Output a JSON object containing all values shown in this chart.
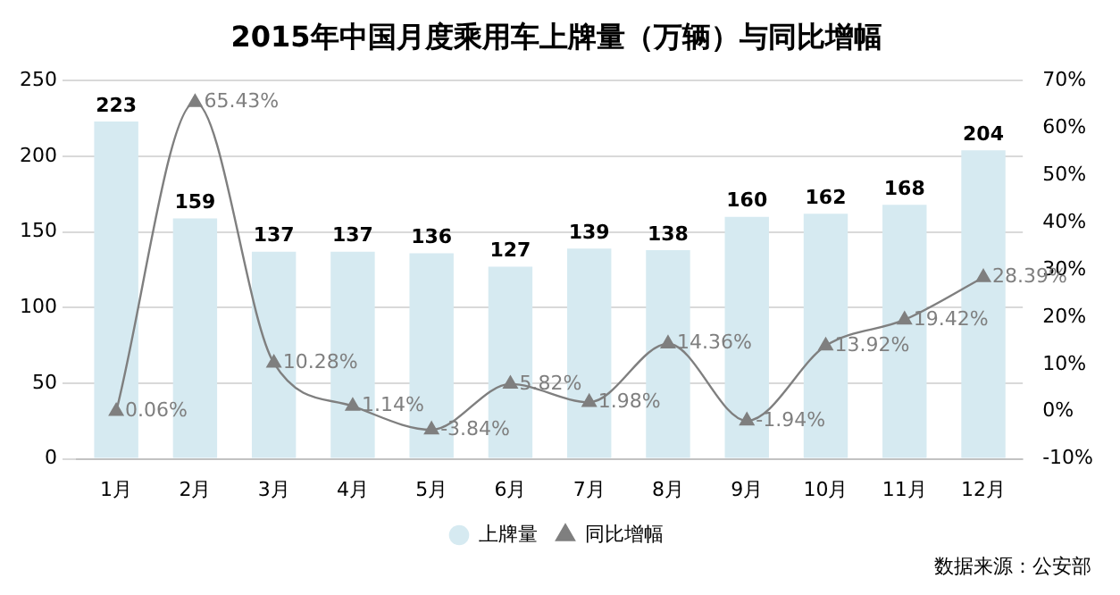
{
  "chart_data": {
    "type": "bar",
    "title": "2015年中国月度乘用车上牌量（万辆）与同比增幅",
    "categories": [
      "1月",
      "2月",
      "3月",
      "4月",
      "5月",
      "6月",
      "7月",
      "8月",
      "9月",
      "10月",
      "11月",
      "12月"
    ],
    "series": [
      {
        "name": "上牌量",
        "color": "#d6eaf1",
        "values": [
          223,
          159,
          137,
          137,
          136,
          127,
          139,
          138,
          160,
          162,
          168,
          204
        ]
      },
      {
        "name": "同比增幅",
        "type": "line",
        "axis": "y2",
        "color": "#7f7f7f",
        "marker": "triangle",
        "values": [
          0.06,
          65.43,
          10.28,
          1.14,
          -3.84,
          5.82,
          1.98,
          14.36,
          -1.94,
          13.92,
          19.42,
          28.39
        ],
        "value_labels": [
          "0.06%",
          "65.43%",
          "10.28%",
          "1.14%",
          "-3.84%",
          "5.82%",
          "1.98%",
          "14.36%",
          "-1.94%",
          "13.92%",
          "19.42%",
          "28.39%"
        ]
      }
    ],
    "data_labels": true,
    "ylim": [
      0,
      250
    ],
    "yticks": [
      0,
      50,
      100,
      150,
      200,
      250
    ],
    "y2lim": [
      -10,
      70
    ],
    "y2ticks": [
      {
        "value": -10,
        "label": "-10%"
      },
      {
        "value": 0,
        "label": "0%"
      },
      {
        "value": 10,
        "label": "10%"
      },
      {
        "value": 20,
        "label": "20%"
      },
      {
        "value": 30,
        "label": "30%"
      },
      {
        "value": 40,
        "label": "40%"
      },
      {
        "value": 50,
        "label": "50%"
      },
      {
        "value": 60,
        "label": "60%"
      },
      {
        "value": 70,
        "label": "70%"
      }
    ],
    "grid": "y",
    "legend": "bottom",
    "annotations": [
      "数据来源：公安部"
    ]
  }
}
